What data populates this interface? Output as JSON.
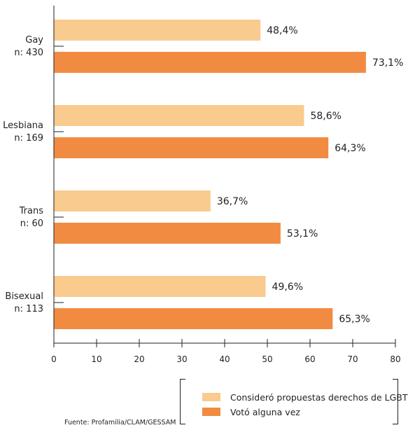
{
  "chart_data": {
    "type": "bar",
    "orientation": "horizontal",
    "categories": [
      {
        "name": "Gay",
        "n": "n: 430"
      },
      {
        "name": "Lesbiana",
        "n": "n: 169"
      },
      {
        "name": "Trans",
        "n": "n: 60"
      },
      {
        "name": "Bisexual",
        "n": "n: 113"
      }
    ],
    "series": [
      {
        "name": "Consideró propuestas derechos de LGBT",
        "color": "#f9cb8e",
        "values": [
          48.4,
          58.6,
          36.7,
          49.6
        ],
        "labels": [
          "48,4%",
          "58,6%",
          "36,7%",
          "49,6%"
        ]
      },
      {
        "name": "Votó alguna vez",
        "color": "#f28b42",
        "values": [
          73.1,
          64.3,
          53.1,
          65.3
        ],
        "labels": [
          "73,1%",
          "64,3%",
          "53,1%",
          "65,3%"
        ]
      }
    ],
    "xlim": [
      0,
      80
    ],
    "xticks": [
      "0",
      "10",
      "20",
      "30",
      "40",
      "50",
      "60",
      "70",
      "80"
    ],
    "legend_position": "bottom-right"
  },
  "source": "Fuente: Profamilia/CLAM/GESSAM"
}
